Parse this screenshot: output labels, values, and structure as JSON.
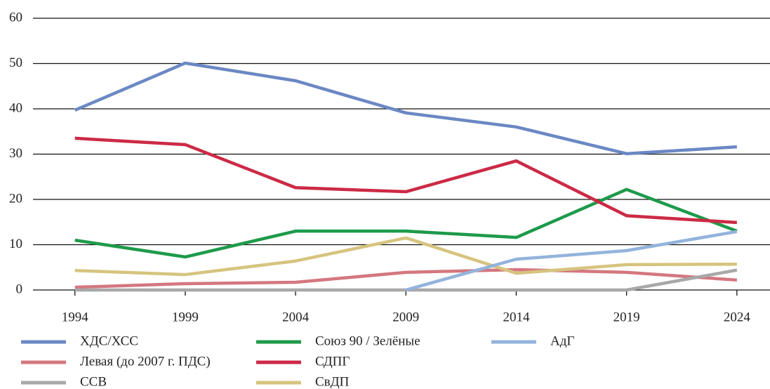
{
  "chart_data": {
    "type": "line",
    "x": [
      1994,
      1999,
      2004,
      2009,
      2014,
      2019,
      2024
    ],
    "xlim": [
      1992.1,
      2025.5
    ],
    "xticks": [
      1994,
      1999,
      2004,
      2009,
      2014,
      2019,
      2024
    ],
    "ylim": [
      0,
      60
    ],
    "yticks": [
      0,
      10,
      20,
      30,
      40,
      50,
      60
    ],
    "grid": true,
    "legend": "bottom",
    "series": [
      {
        "name": "ХДС/ХСС",
        "color": "#6b88c4",
        "values": [
          39.7,
          50.1,
          46.2,
          39.1,
          36.0,
          30.1,
          31.6
        ]
      },
      {
        "name": "Левая (до 2007 г. ПДС)",
        "color": "#d4777f",
        "values": [
          0.6,
          1.4,
          1.7,
          3.9,
          4.5,
          3.9,
          2.2
        ]
      },
      {
        "name": "ССВ",
        "color": "#a8a8a8",
        "values": [
          0,
          0,
          0,
          0,
          0,
          0,
          4.4
        ]
      },
      {
        "name": "Союз 90 / Зелёные",
        "color": "#1e9a4a",
        "values": [
          11.0,
          7.3,
          13.0,
          13.0,
          11.6,
          22.2,
          13.0
        ]
      },
      {
        "name": "СДПГ",
        "color": "#cc2a45",
        "values": [
          33.5,
          32.1,
          22.6,
          21.7,
          28.5,
          16.4,
          14.9
        ]
      },
      {
        "name": "СвДП",
        "color": "#d6c47f",
        "values": [
          4.3,
          3.4,
          6.4,
          11.5,
          3.7,
          5.6,
          5.7
        ]
      },
      {
        "name": "АдГ",
        "color": "#93b3dc",
        "values": [
          null,
          null,
          null,
          0,
          6.8,
          8.7,
          12.9
        ]
      }
    ]
  }
}
